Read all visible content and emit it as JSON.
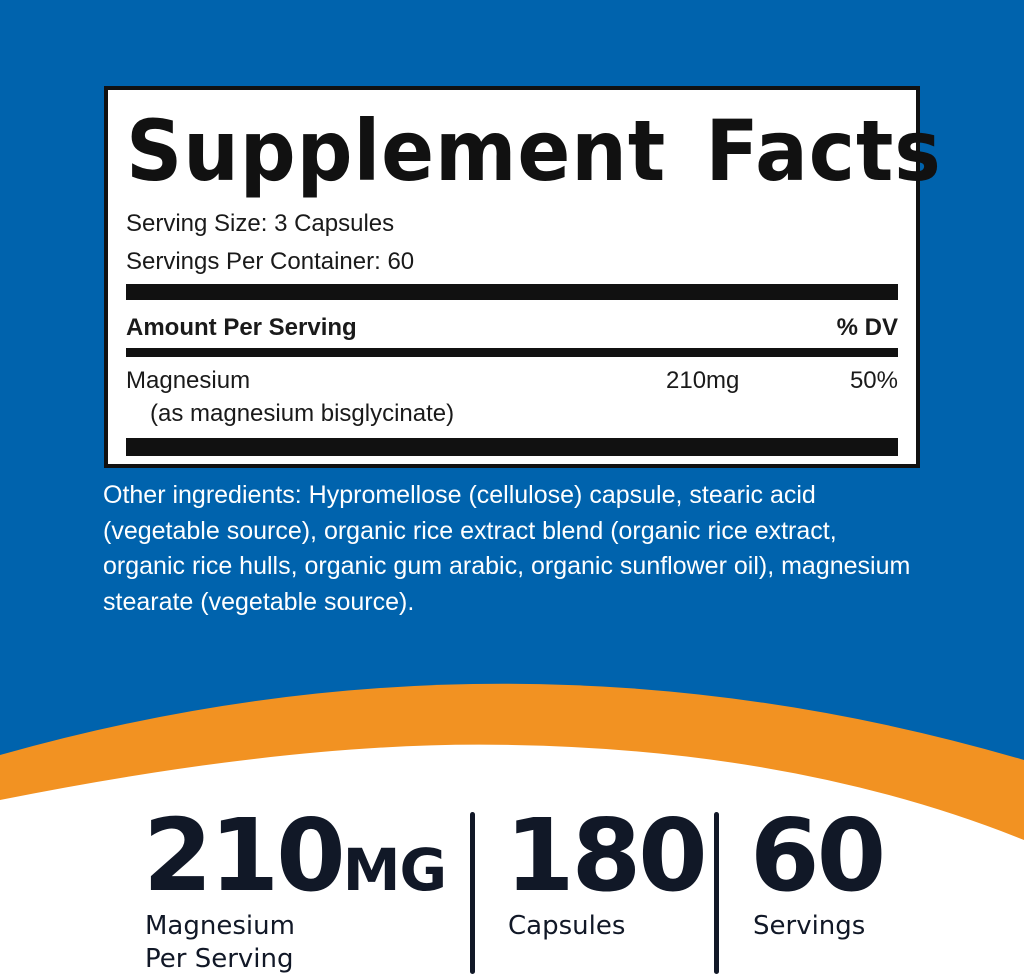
{
  "colors": {
    "background_blue": "#0063ad",
    "accent_orange": "#f29222",
    "text_dark": "#111827"
  },
  "facts": {
    "title": "Supplement Facts",
    "serving_size": "Serving Size: 3 Capsules",
    "servings_per_container": "Servings Per Container: 60",
    "amount_header": "Amount Per Serving",
    "dv_header": "% DV",
    "rows": [
      {
        "name": "Magnesium",
        "detail": "(as magnesium bisglycinate)",
        "amount": "210mg",
        "dv": "50%"
      }
    ]
  },
  "other_ingredients": "Other ingredients: Hypromellose (cellulose) capsule, stearic acid (vegetable source), organic rice extract blend (organic rice extract, organic rice hulls, organic gum arabic, organic sunflower oil), magnesium stearate (vegetable source).",
  "stats": [
    {
      "value": "210",
      "unit": "MG",
      "label1": "Magnesium",
      "label2": "Per Serving"
    },
    {
      "value": "180",
      "label1": "Capsules"
    },
    {
      "value": "60",
      "label1": "Servings"
    }
  ]
}
